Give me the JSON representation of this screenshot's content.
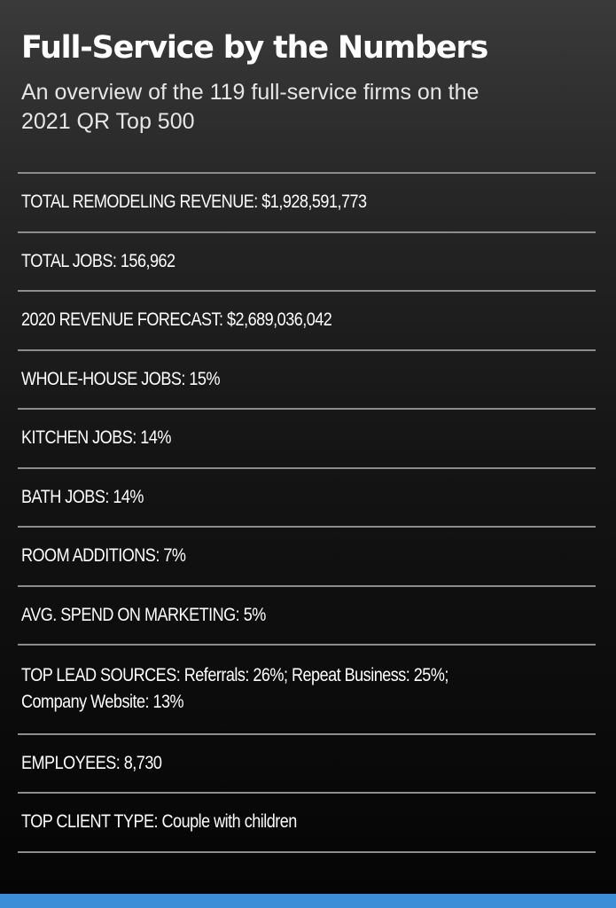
{
  "header": {
    "title": "Full-Service by the Numbers",
    "subtitle": "An overview of the 119 full-service firms on the 2021 QR Top 500"
  },
  "stats": [
    {
      "label": "TOTAL REMODELING REVENUE:",
      "value": " $1,928,591,773"
    },
    {
      "label": "TOTAL JOBS:",
      "value": " 156,962"
    },
    {
      "label": "2020 REVENUE FORECAST:",
      "value": " $2,689,036,042"
    },
    {
      "label": "WHOLE-HOUSE JOBS:",
      "value": " 15%"
    },
    {
      "label": "KITCHEN JOBS:",
      "value": " 14%"
    },
    {
      "label": "BATH JOBS:",
      "value": " 14%"
    },
    {
      "label": "ROOM ADDITIONS:",
      "value": " 7%"
    },
    {
      "label": "AVG. SPEND ON MARKETING:",
      "value": " 5%"
    },
    {
      "label": "TOP LEAD SOURCES:",
      "value": " Referrals: 26%; Repeat Business: 25%; Company Website: 13%"
    },
    {
      "label": "EMPLOYEES:",
      "value": " 8,730"
    },
    {
      "label": "TOP CLIENT TYPE:",
      "value": " Couple with children"
    }
  ],
  "colors": {
    "accent_bar": "#3c8fd6",
    "divider": "#8c8c8c"
  }
}
